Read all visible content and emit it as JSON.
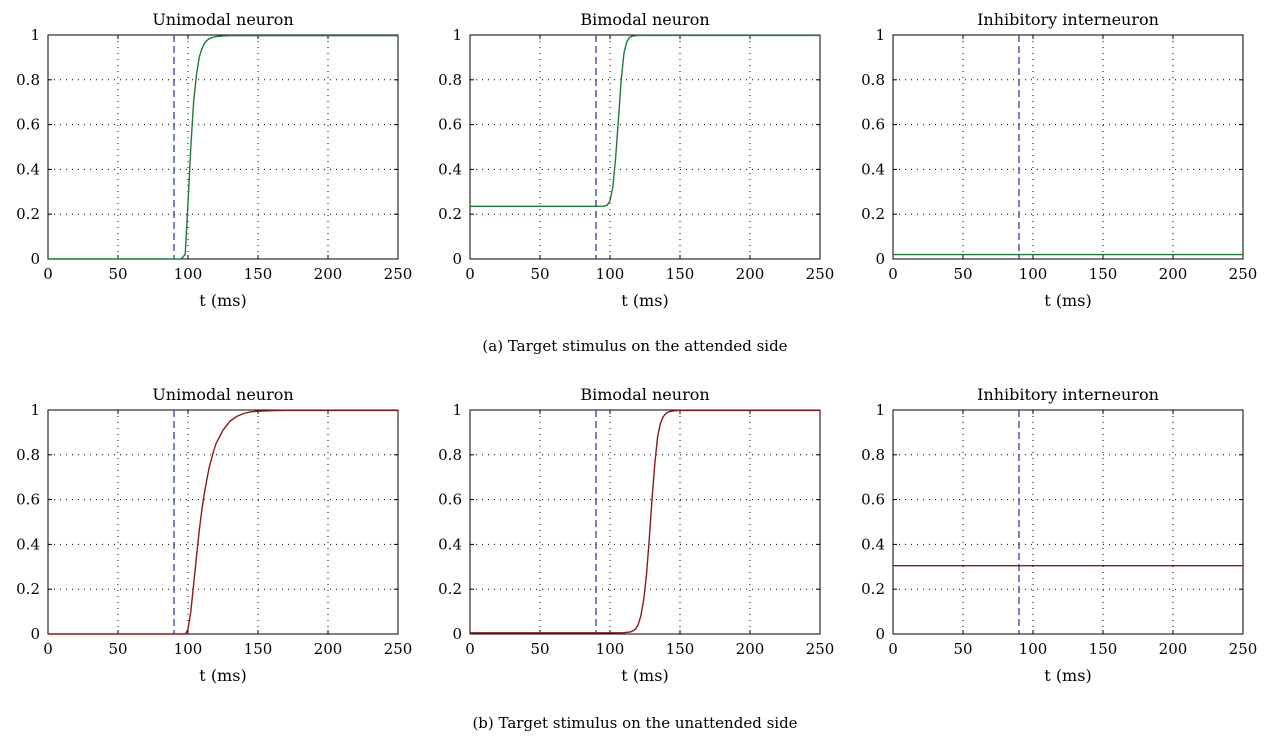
{
  "captions": [
    "(a)  Target stimulus on the attended side",
    "(b)  Target stimulus on the unattended side"
  ],
  "chart_data": [
    {
      "type": "line",
      "title": "Unimodal neuron",
      "xlabel": "t (ms)",
      "xlim": [
        0,
        250
      ],
      "ylim": [
        0,
        1
      ],
      "xticks": [
        "0",
        "50",
        "100",
        "150",
        "200",
        "250"
      ],
      "yticks": [
        "0",
        "0.2",
        "0.4",
        "0.6",
        "0.8",
        "1"
      ],
      "grid": true,
      "stimulus_onset": 90,
      "color": "#1f7a3a",
      "x": [
        0,
        90,
        95,
        98,
        100,
        102,
        104,
        106,
        108,
        110,
        112,
        114,
        116,
        118,
        120,
        125,
        130,
        140,
        250
      ],
      "y": [
        0.0,
        0.0,
        0.0,
        0.02,
        0.25,
        0.5,
        0.7,
        0.82,
        0.9,
        0.94,
        0.965,
        0.978,
        0.986,
        0.99,
        0.993,
        0.996,
        0.997,
        0.997,
        0.997
      ]
    },
    {
      "type": "line",
      "title": "Bimodal neuron",
      "xlabel": "t (ms)",
      "xlim": [
        0,
        250
      ],
      "ylim": [
        0,
        1
      ],
      "xticks": [
        "0",
        "50",
        "100",
        "150",
        "200",
        "250"
      ],
      "yticks": [
        "0",
        "0.2",
        "0.4",
        "0.6",
        "0.8",
        "1"
      ],
      "grid": true,
      "stimulus_onset": 90,
      "color": "#1f7a3a",
      "x": [
        0,
        90,
        95,
        98,
        100,
        102,
        104,
        106,
        108,
        110,
        112,
        114,
        116,
        118,
        120,
        125,
        130,
        250
      ],
      "y": [
        0.235,
        0.235,
        0.236,
        0.24,
        0.26,
        0.32,
        0.45,
        0.62,
        0.8,
        0.92,
        0.97,
        0.99,
        0.995,
        0.997,
        0.998,
        0.998,
        0.998,
        0.998
      ]
    },
    {
      "type": "line",
      "title": "Inhibitory interneuron",
      "xlabel": "t (ms)",
      "xlim": [
        0,
        250
      ],
      "ylim": [
        0,
        1
      ],
      "xticks": [
        "0",
        "50",
        "100",
        "150",
        "200",
        "250"
      ],
      "yticks": [
        "0",
        "0.2",
        "0.4",
        "0.6",
        "0.8",
        "1"
      ],
      "grid": true,
      "stimulus_onset": 90,
      "color": "#1f7a3a",
      "x": [
        0,
        250
      ],
      "y": [
        0.02,
        0.02
      ]
    },
    {
      "type": "line",
      "title": "Unimodal neuron",
      "xlabel": "t (ms)",
      "xlim": [
        0,
        250
      ],
      "ylim": [
        0,
        1
      ],
      "xticks": [
        "0",
        "50",
        "100",
        "150",
        "200",
        "250"
      ],
      "yticks": [
        "0",
        "0.2",
        "0.4",
        "0.6",
        "0.8",
        "1"
      ],
      "grid": true,
      "stimulus_onset": 90,
      "color": "#8b1a1a",
      "x": [
        0,
        90,
        98,
        100,
        102,
        104,
        106,
        108,
        110,
        112,
        115,
        118,
        120,
        125,
        130,
        135,
        140,
        145,
        150,
        160,
        170,
        250
      ],
      "y": [
        0.0,
        0.0,
        0.0,
        0.02,
        0.1,
        0.22,
        0.34,
        0.46,
        0.56,
        0.64,
        0.74,
        0.81,
        0.85,
        0.91,
        0.95,
        0.972,
        0.985,
        0.992,
        0.995,
        0.997,
        0.998,
        0.998
      ]
    },
    {
      "type": "line",
      "title": "Bimodal neuron",
      "xlabel": "t (ms)",
      "xlim": [
        0,
        250
      ],
      "ylim": [
        0,
        1
      ],
      "xticks": [
        "0",
        "50",
        "100",
        "150",
        "200",
        "250"
      ],
      "yticks": [
        "0",
        "0.2",
        "0.4",
        "0.6",
        "0.8",
        "1"
      ],
      "grid": true,
      "stimulus_onset": 90,
      "color": "#8b1a1a",
      "x": [
        0,
        90,
        110,
        115,
        118,
        120,
        122,
        124,
        126,
        128,
        130,
        132,
        134,
        136,
        138,
        140,
        142,
        145,
        150,
        250
      ],
      "y": [
        0.005,
        0.005,
        0.006,
        0.01,
        0.02,
        0.04,
        0.08,
        0.15,
        0.26,
        0.42,
        0.6,
        0.76,
        0.88,
        0.94,
        0.97,
        0.985,
        0.992,
        0.996,
        0.998,
        0.998
      ]
    },
    {
      "type": "line",
      "title": "Inhibitory interneuron",
      "xlabel": "t (ms)",
      "xlim": [
        0,
        250
      ],
      "ylim": [
        0,
        1
      ],
      "xticks": [
        "0",
        "50",
        "100",
        "150",
        "200",
        "250"
      ],
      "yticks": [
        "0",
        "0.2",
        "0.4",
        "0.6",
        "0.8",
        "1"
      ],
      "grid": true,
      "stimulus_onset": 90,
      "color": "#8b1a1a",
      "x": [
        0,
        250
      ],
      "y": [
        0.305,
        0.305
      ]
    }
  ]
}
